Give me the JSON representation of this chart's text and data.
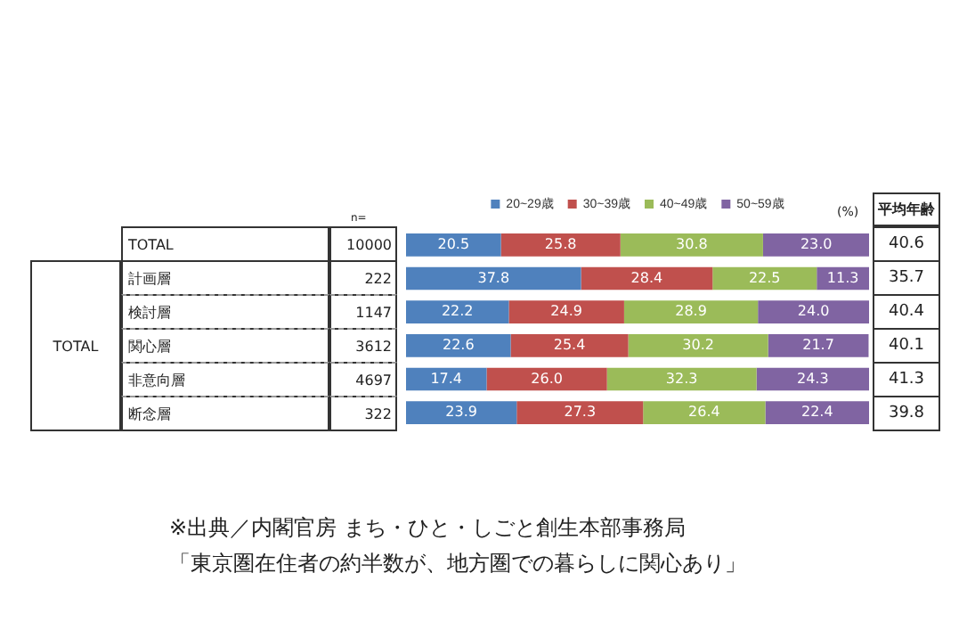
{
  "chart_data": {
    "type": "bar",
    "orientation": "horizontal",
    "stacked": true,
    "legend": "top",
    "tick_labels": "y",
    "categories": [
      "TOTAL",
      "計画層",
      "検討層",
      "関心層",
      "非意向層",
      "断念層"
    ],
    "xlim": [
      0,
      100
    ],
    "series": [
      {
        "name": "20~29歳",
        "color": "#4f81bd",
        "values": [
          20.5,
          37.8,
          22.2,
          22.6,
          17.4,
          23.9
        ],
        "value_labels": [
          "20.5",
          "37.8",
          "22.2",
          "22.6",
          "17.4",
          "23.9"
        ]
      },
      {
        "name": "30~39歳",
        "color": "#c0504d",
        "values": [
          25.8,
          28.4,
          24.9,
          25.4,
          26.0,
          27.3
        ],
        "value_labels": [
          "25.8",
          "28.4",
          "24.9",
          "25.4",
          "26.0",
          "27.3"
        ]
      },
      {
        "name": "40~49歳",
        "color": "#9bbb59",
        "values": [
          30.8,
          22.5,
          28.9,
          30.2,
          32.3,
          26.4
        ],
        "value_labels": [
          "30.8",
          "22.5",
          "28.9",
          "30.2",
          "32.3",
          "26.4"
        ]
      },
      {
        "name": "50~59歳",
        "color": "#8064a2",
        "values": [
          23.0,
          11.3,
          24.0,
          21.7,
          24.3,
          22.4
        ],
        "value_labels": [
          "23.0",
          "11.3",
          "24.0",
          "21.7",
          "24.3",
          "22.4"
        ]
      }
    ],
    "annotations": [
      "n=",
      "10000",
      "222",
      "1147",
      "3612",
      "4697",
      "322",
      "(%)",
      "平均年齢",
      "40.6",
      "35.7",
      "40.4",
      "40.1",
      "41.3",
      "39.8",
      "TOTAL",
      "※出典／内閣官房 まち・ひと・しごと創生本部事務局",
      "「東京圏在住者の約半数が、地方圏での暮らしに関心あり」"
    ]
  }
}
